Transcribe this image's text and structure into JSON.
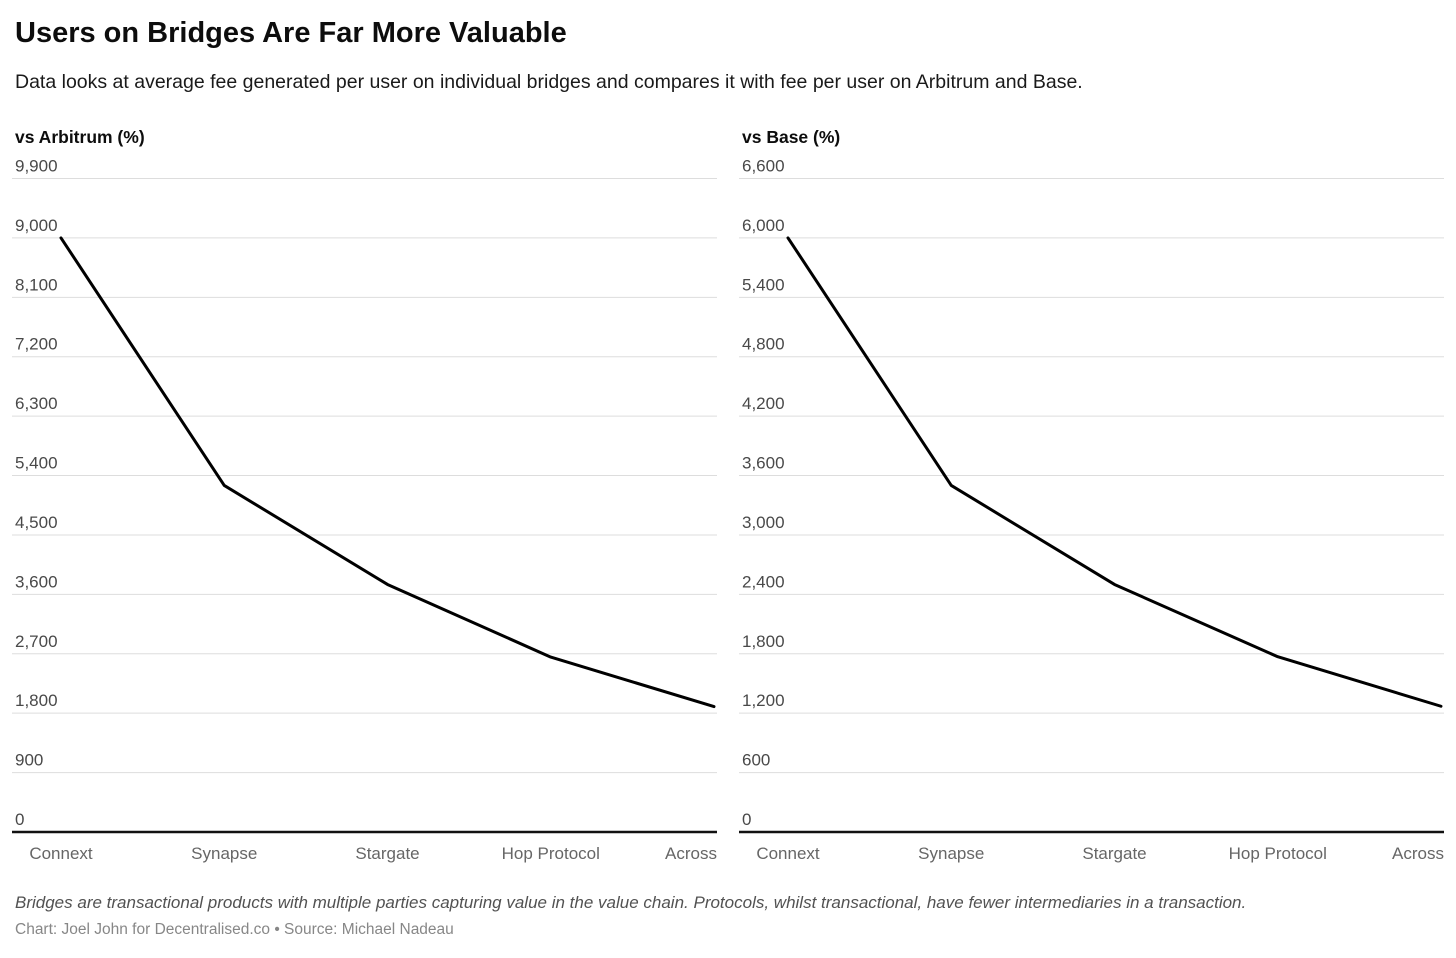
{
  "title": "Users on Bridges Are Far More Valuable",
  "subtitle": "Data looks at average fee generated per user on individual bridges and compares it with fee per user on Arbitrum and Base.",
  "footnote": "Bridges are transactional products with multiple parties capturing value in the value chain. Protocols, whilst transactional, have fewer intermediaries in a transaction.",
  "credit": "Chart: Joel John for Decentralised.co • Source: Michael Nadeau",
  "colors": {
    "line": "#000000",
    "grid": "#dddddd",
    "axis": "#111111",
    "y_tick_text": "#494949",
    "x_tick_text": "#666666"
  },
  "chart_data": [
    {
      "type": "line",
      "title": "vs Arbitrum (%)",
      "categories": [
        "Connext",
        "Synapse",
        "Stargate",
        "Hop Protocol",
        "Across"
      ],
      "values": [
        9000,
        5250,
        3750,
        2650,
        1900
      ],
      "xlabel": "",
      "ylabel": "vs Arbitrum (%)",
      "ylim": [
        0,
        9900
      ],
      "ytick_step": 900,
      "ytick_labels": [
        "0",
        "900",
        "1,800",
        "2,700",
        "3,600",
        "4,500",
        "5,400",
        "6,300",
        "7,200",
        "8,100",
        "9,000",
        "9,900"
      ],
      "grid": true,
      "legend": "none"
    },
    {
      "type": "line",
      "title": "vs Base (%)",
      "categories": [
        "Connext",
        "Synapse",
        "Stargate",
        "Hop Protocol",
        "Across"
      ],
      "values": [
        6000,
        3500,
        2500,
        1770,
        1270
      ],
      "xlabel": "",
      "ylabel": "vs Base (%)",
      "ylim": [
        0,
        6600
      ],
      "ytick_step": 600,
      "ytick_labels": [
        "0",
        "600",
        "1,200",
        "1,800",
        "2,400",
        "3,000",
        "3,600",
        "4,200",
        "4,800",
        "5,400",
        "6,000",
        "6,600"
      ],
      "grid": true,
      "legend": "none"
    }
  ]
}
